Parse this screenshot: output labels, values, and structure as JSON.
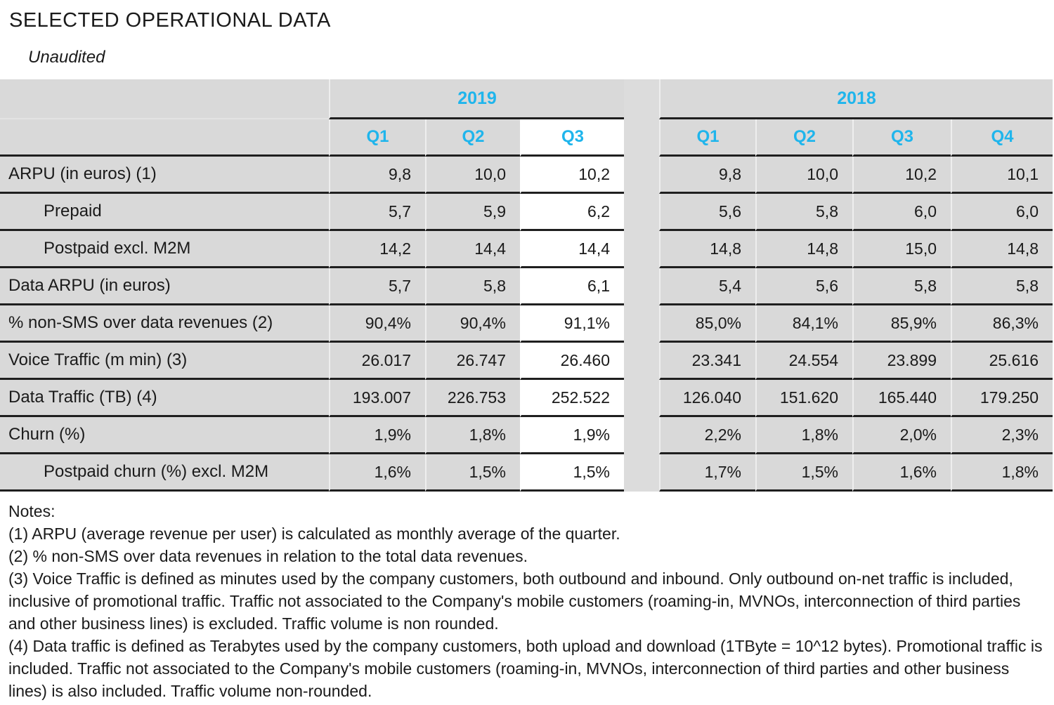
{
  "page": {
    "title": "SELECTED OPERATIONAL DATA",
    "subtitle": "Unaudited"
  },
  "table": {
    "year_groups": [
      {
        "label": "2019",
        "quarters": [
          "Q1",
          "Q2",
          "Q3"
        ]
      },
      {
        "label": "2018",
        "quarters": [
          "Q1",
          "Q2",
          "Q3",
          "Q4"
        ]
      }
    ],
    "highlighted_column": "2019 Q3",
    "rows": [
      {
        "label": "ARPU (in euros) (1)",
        "indent": false,
        "y2019": [
          "9,8",
          "10,0",
          "10,2"
        ],
        "y2018": [
          "9,8",
          "10,0",
          "10,2",
          "10,1"
        ]
      },
      {
        "label": "Prepaid",
        "indent": true,
        "y2019": [
          "5,7",
          "5,9",
          "6,2"
        ],
        "y2018": [
          "5,6",
          "5,8",
          "6,0",
          "6,0"
        ]
      },
      {
        "label": "Postpaid excl. M2M",
        "indent": true,
        "y2019": [
          "14,2",
          "14,4",
          "14,4"
        ],
        "y2018": [
          "14,8",
          "14,8",
          "15,0",
          "14,8"
        ]
      },
      {
        "label": "Data ARPU (in euros)",
        "indent": false,
        "y2019": [
          "5,7",
          "5,8",
          "6,1"
        ],
        "y2018": [
          "5,4",
          "5,6",
          "5,8",
          "5,8"
        ]
      },
      {
        "label": "% non-SMS over data revenues (2)",
        "indent": false,
        "y2019": [
          "90,4%",
          "90,4%",
          "91,1%"
        ],
        "y2018": [
          "85,0%",
          "84,1%",
          "85,9%",
          "86,3%"
        ]
      },
      {
        "label": "Voice Traffic (m min) (3)",
        "indent": false,
        "y2019": [
          "26.017",
          "26.747",
          "26.460"
        ],
        "y2018": [
          "23.341",
          "24.554",
          "23.899",
          "25.616"
        ]
      },
      {
        "label": "Data Traffic (TB) (4)",
        "indent": false,
        "y2019": [
          "193.007",
          "226.753",
          "252.522"
        ],
        "y2018": [
          "126.040",
          "151.620",
          "165.440",
          "179.250"
        ]
      },
      {
        "label": "Churn (%)",
        "indent": false,
        "y2019": [
          "1,9%",
          "1,8%",
          "1,9%"
        ],
        "y2018": [
          "2,2%",
          "1,8%",
          "2,0%",
          "2,3%"
        ]
      },
      {
        "label": "Postpaid churn (%) excl. M2M",
        "indent": true,
        "y2019": [
          "1,6%",
          "1,5%",
          "1,5%"
        ],
        "y2018": [
          "1,7%",
          "1,5%",
          "1,6%",
          "1,8%"
        ]
      }
    ]
  },
  "notes": {
    "heading": "Notes:",
    "items": [
      "(1) ARPU (average revenue per user) is calculated as monthly average of the quarter.",
      "(2) % non-SMS over data revenues in relation to the total data revenues.",
      "(3) Voice Traffic is defined as minutes used by the company customers, both outbound and inbound. Only outbound on-net traffic is included, inclusive of promotional traffic. Traffic not associated to the Company's mobile customers (roaming-in, MVNOs, interconnection of third parties and other business lines) is excluded. Traffic volume is non rounded.",
      "(4) Data traffic is defined as Terabytes used by the company customers, both upload and download (1TByte = 10^12 bytes). Promotional traffic is included. Traffic not associated to the Company's mobile customers (roaming-in, MVNOs, interconnection of third parties and other business lines) is also included. Traffic volume non-rounded."
    ]
  },
  "colors": {
    "accent": "#1fb5ec",
    "cell_bg": "#d9d9d9",
    "gap_bg": "#dcdcdc",
    "highlight_bg": "#ffffff",
    "line": "#1f1f1f",
    "text": "#1a1a1a"
  }
}
